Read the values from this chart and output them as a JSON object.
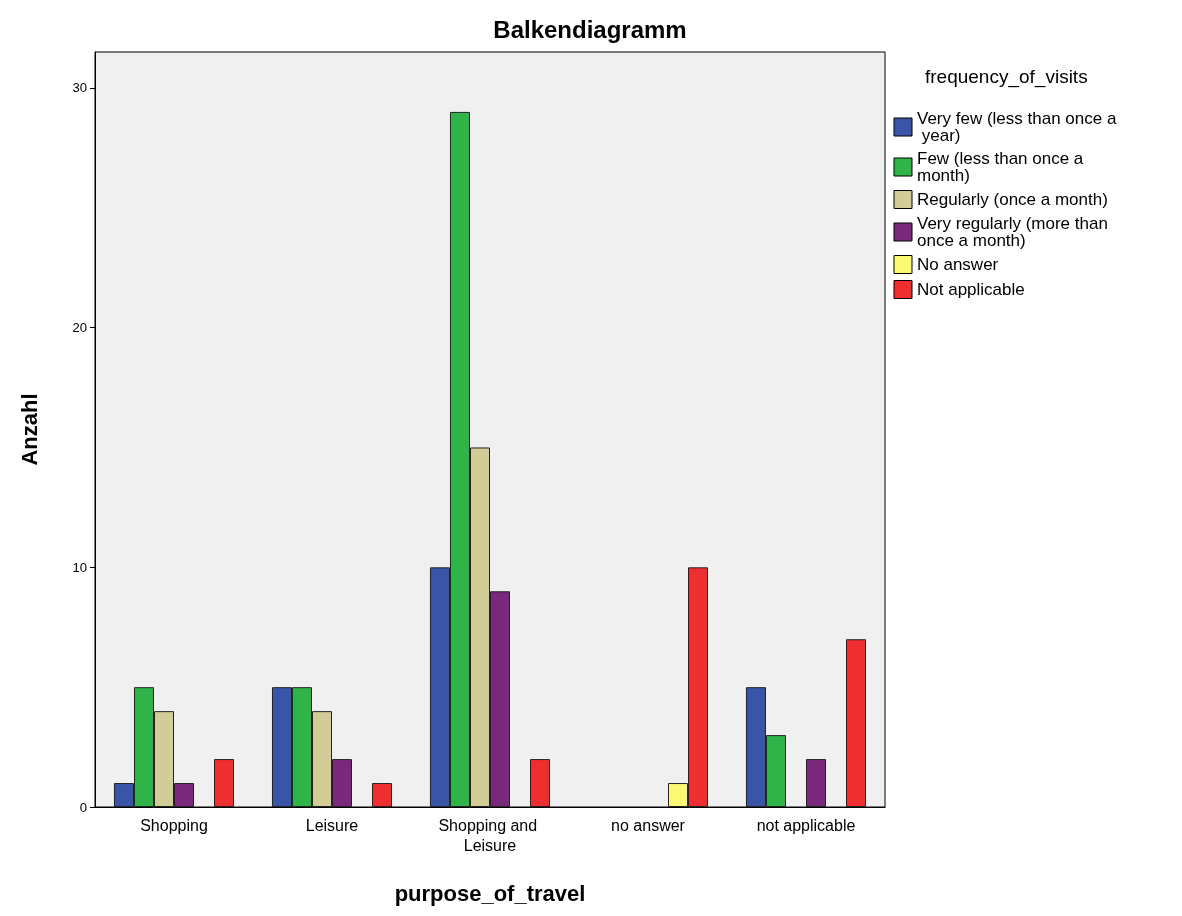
{
  "chart_data": {
    "type": "bar",
    "title": "Balkendiagramm",
    "xlabel": "purpose_of_travel",
    "ylabel": "Anzahl",
    "legend_title": "frequency_of_visits",
    "categories": [
      "Shopping",
      "Leisure",
      "Shopping and Leisure",
      "no answer",
      "not applicable"
    ],
    "series": [
      {
        "name": "Very few (less than once a year)",
        "color": "#3a55a8",
        "values": [
          1,
          5,
          10,
          null,
          5
        ]
      },
      {
        "name": "Few (less than once a month)",
        "color": "#2fb44a",
        "values": [
          5,
          5,
          29,
          null,
          3
        ]
      },
      {
        "name": "Regularly (once a month)",
        "color": "#d2cc96",
        "values": [
          4,
          4,
          15,
          null,
          null
        ]
      },
      {
        "name": "Very regularly (more than once a month)",
        "color": "#79287c",
        "values": [
          1,
          2,
          9,
          null,
          2
        ]
      },
      {
        "name": "No answer",
        "color": "#fbf873",
        "values": [
          null,
          null,
          null,
          1,
          null
        ]
      },
      {
        "name": "Not applicable",
        "color": "#ee2e30",
        "values": [
          2,
          1,
          2,
          10,
          7
        ]
      }
    ],
    "ylim": [
      0,
      31.5
    ],
    "yticks": [
      0,
      10,
      20,
      30
    ],
    "grid": false,
    "legend": "top right"
  }
}
